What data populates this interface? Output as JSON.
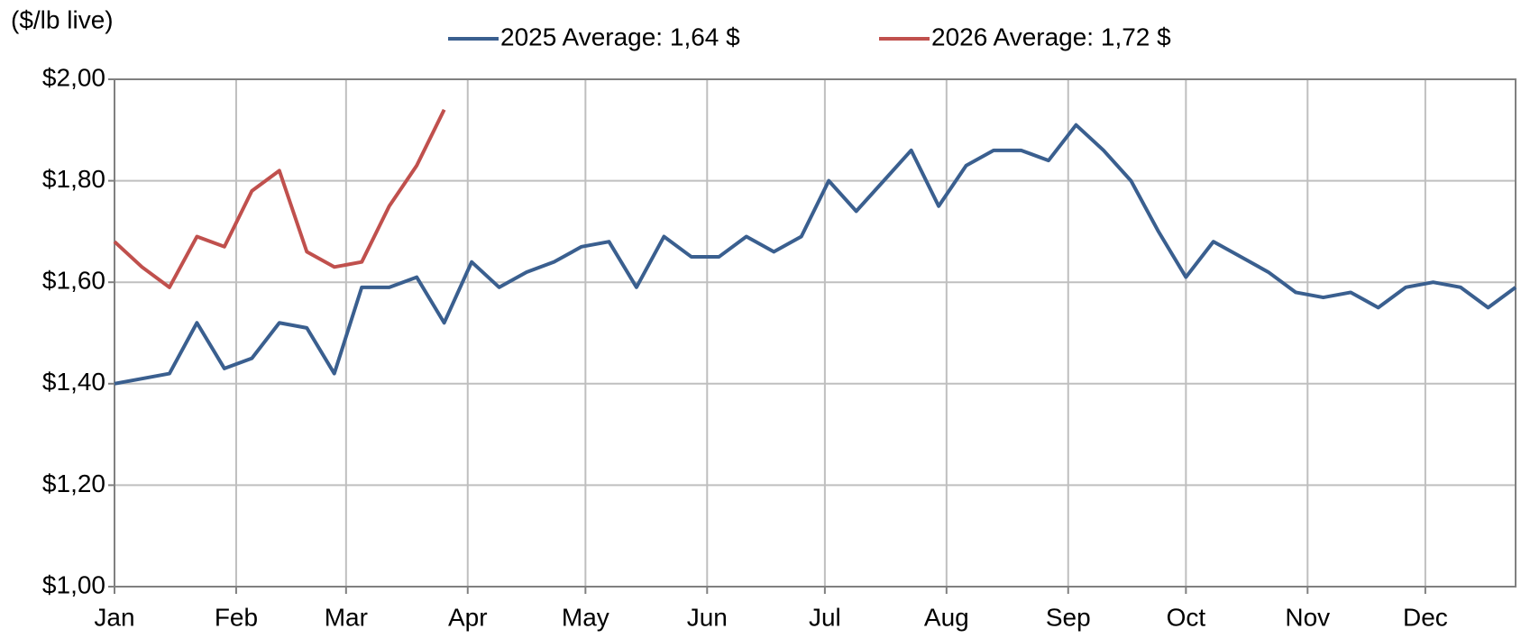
{
  "chart_data": {
    "type": "line",
    "y_axis_label": "($/lb live)",
    "xlim": [
      0,
      357
    ],
    "xticks": [
      {
        "value": 0,
        "label": "Jan"
      },
      {
        "value": 31,
        "label": "Feb"
      },
      {
        "value": 59,
        "label": "Mar"
      },
      {
        "value": 90,
        "label": "Apr"
      },
      {
        "value": 120,
        "label": "May"
      },
      {
        "value": 151,
        "label": "Jun"
      },
      {
        "value": 181,
        "label": "Jul"
      },
      {
        "value": 212,
        "label": "Aug"
      },
      {
        "value": 243,
        "label": "Sep"
      },
      {
        "value": 273,
        "label": "Oct"
      },
      {
        "value": 304,
        "label": "Nov"
      },
      {
        "value": 334,
        "label": "Dec"
      }
    ],
    "ylim": [
      1.0,
      2.0
    ],
    "yticks": [
      {
        "value": 1.0,
        "label": "$1,00"
      },
      {
        "value": 1.2,
        "label": "$1,20"
      },
      {
        "value": 1.4,
        "label": "$1,40"
      },
      {
        "value": 1.6,
        "label": "$1,60"
      },
      {
        "value": 1.8,
        "label": "$1,80"
      },
      {
        "value": 2.0,
        "label": "$2,00"
      }
    ],
    "grid": true,
    "legend": "top",
    "x": [
      0,
      7,
      14,
      21,
      28,
      35,
      42,
      49,
      56,
      63,
      70,
      77,
      84,
      91,
      98,
      105,
      112,
      119,
      126,
      133,
      140,
      147,
      154,
      161,
      168,
      175,
      182,
      189,
      196,
      203,
      210,
      217,
      224,
      231,
      238,
      245,
      252,
      259,
      266,
      273,
      280,
      287,
      294,
      301,
      308,
      315,
      322,
      329,
      336,
      343,
      350,
      357
    ],
    "series": [
      {
        "name": "2025 Average: 1,64 $",
        "color": "#3a5f8f",
        "values": [
          1.4,
          1.41,
          1.42,
          1.52,
          1.43,
          1.45,
          1.52,
          1.51,
          1.42,
          1.59,
          1.59,
          1.61,
          1.52,
          1.64,
          1.59,
          1.62,
          1.64,
          1.67,
          1.68,
          1.59,
          1.69,
          1.65,
          1.65,
          1.69,
          1.66,
          1.69,
          1.8,
          1.74,
          1.8,
          1.86,
          1.75,
          1.83,
          1.86,
          1.86,
          1.84,
          1.91,
          1.86,
          1.8,
          1.7,
          1.61,
          1.68,
          1.65,
          1.62,
          1.58,
          1.57,
          1.58,
          1.55,
          1.59,
          1.6,
          1.59,
          1.55,
          1.59
        ]
      },
      {
        "name": "2026 Average: 1,72 $",
        "color": "#c0504d",
        "values": [
          1.68,
          1.63,
          1.59,
          1.69,
          1.67,
          1.78,
          1.82,
          1.66,
          1.63,
          1.64,
          1.75,
          1.83,
          1.94,
          null,
          null,
          null,
          null,
          null,
          null,
          null,
          null,
          null,
          null,
          null,
          null,
          null,
          null,
          null,
          null,
          null,
          null,
          null,
          null,
          null,
          null,
          null,
          null,
          null,
          null,
          null,
          null,
          null,
          null,
          null,
          null,
          null,
          null,
          null,
          null,
          null,
          null,
          null
        ]
      }
    ]
  }
}
